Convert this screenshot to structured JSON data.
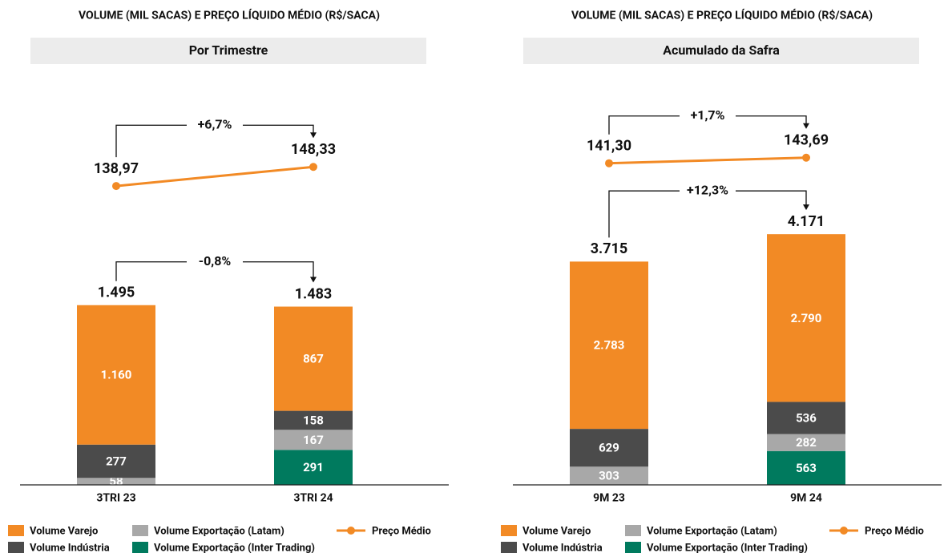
{
  "chart_data": [
    {
      "type": "stacked_bar_line",
      "title": "VOLUME (MIL SACAS) E PREÇO LÍQUIDO MÉDIO (R$/SACA)",
      "subtitle": "Por Trimestre",
      "categories": [
        "3TRI 23",
        "3TRI 24"
      ],
      "ylim": [
        0,
        2100
      ],
      "y2lim": [
        128,
        183
      ],
      "series": [
        {
          "name": "Volume Varejo",
          "color": "#f28a25",
          "values": [
            1160,
            867
          ],
          "value_labels": [
            "1.160",
            "867"
          ]
        },
        {
          "name": "Volume Indústria",
          "color": "#4b4b4b",
          "values": [
            277,
            158
          ],
          "value_labels": [
            "277",
            "158"
          ]
        },
        {
          "name": "Volume Exportação (Latam)",
          "color": "#a8a8a8",
          "values": [
            58,
            167
          ],
          "value_labels": [
            "58",
            "167"
          ]
        },
        {
          "name": "Volume Exportação (Inter Trading)",
          "color": "#007a5e",
          "values": [
            null,
            291
          ],
          "value_labels": [
            null,
            "291"
          ]
        },
        {
          "name": "Preço Médio",
          "color": "#f28a25",
          "axis": "y2",
          "values": [
            138.97,
            148.33
          ],
          "value_labels": [
            "138,97",
            "148,33"
          ]
        }
      ],
      "totals": {
        "values": [
          1495,
          1483
        ],
        "value_labels": [
          "1.495",
          "1.483"
        ]
      },
      "volume_change_label": "-0,8%",
      "price_change_label": "+6,7%"
    },
    {
      "type": "stacked_bar_line",
      "title": "VOLUME (MIL SACAS) E PREÇO LÍQUIDO MÉDIO (R$/SACA)",
      "subtitle": "Acumulado da Safra",
      "categories": [
        "9M 23",
        "9M 24"
      ],
      "ylim": [
        0,
        4200
      ],
      "y2lim": [
        122,
        170
      ],
      "series": [
        {
          "name": "Volume Varejo",
          "color": "#f28a25",
          "values": [
            2783,
            2790
          ],
          "value_labels": [
            "2.783",
            "2.790"
          ]
        },
        {
          "name": "Volume Indústria",
          "color": "#4b4b4b",
          "values": [
            629,
            536
          ],
          "value_labels": [
            "629",
            "536"
          ]
        },
        {
          "name": "Volume Exportação (Latam)",
          "color": "#a8a8a8",
          "values": [
            303,
            282
          ],
          "value_labels": [
            "303",
            "282"
          ]
        },
        {
          "name": "Volume Exportação (Inter Trading)",
          "color": "#007a5e",
          "values": [
            null,
            563
          ],
          "value_labels": [
            null,
            "563"
          ]
        },
        {
          "name": "Preço Médio",
          "color": "#f28a25",
          "axis": "y2",
          "values": [
            141.3,
            143.69
          ],
          "value_labels": [
            "141,30",
            "143,69"
          ]
        }
      ],
      "totals": {
        "values": [
          3715,
          4171
        ],
        "value_labels": [
          "3.715",
          "4.171"
        ]
      },
      "volume_change_label": "+12,3%",
      "price_change_label": "+1,7%"
    }
  ]
}
